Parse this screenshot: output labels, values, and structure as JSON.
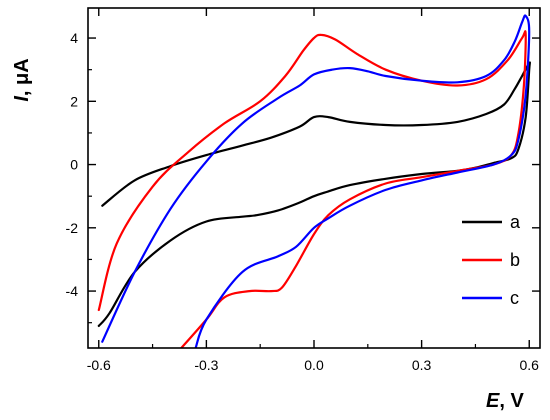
{
  "chart_data": {
    "type": "line",
    "xlabel_symbol": "E",
    "xlabel_unit": ", V",
    "ylabel_symbol": "I",
    "ylabel_unit": ", μA",
    "xlim": [
      -0.63,
      0.63
    ],
    "ylim": [
      -5.8,
      4.95
    ],
    "x_ticks": [
      -0.6,
      -0.3,
      0.0,
      0.3,
      0.6
    ],
    "x_tick_labels": [
      "-0.6",
      "-0.3",
      "0.0",
      "0.3",
      "0.6"
    ],
    "y_ticks": [
      -4,
      -2,
      0,
      2,
      4
    ],
    "y_tick_labels": [
      "-4",
      "-2",
      "0",
      "2",
      "4"
    ],
    "grid": false,
    "legend_position": "right",
    "series": [
      {
        "name": "a",
        "color": "#000000",
        "x": [
          -0.59,
          -0.5,
          -0.4,
          -0.3,
          -0.2,
          -0.12,
          -0.04,
          0.0,
          0.04,
          0.1,
          0.2,
          0.3,
          0.4,
          0.48,
          0.53,
          0.56,
          0.58,
          0.6,
          0.6,
          0.59,
          0.57,
          0.55,
          0.5,
          0.45,
          0.4,
          0.3,
          0.2,
          0.1,
          0.04,
          0.0,
          -0.04,
          -0.1,
          -0.16,
          -0.2,
          -0.3,
          -0.4,
          -0.5,
          -0.57,
          -0.6
        ],
        "y": [
          -1.3,
          -0.5,
          -0.05,
          0.3,
          0.6,
          0.85,
          1.2,
          1.5,
          1.5,
          1.35,
          1.25,
          1.25,
          1.35,
          1.6,
          1.9,
          2.4,
          2.8,
          3.2,
          3.0,
          1.5,
          0.5,
          0.2,
          0.05,
          -0.1,
          -0.2,
          -0.3,
          -0.45,
          -0.65,
          -0.85,
          -1.0,
          -1.2,
          -1.45,
          -1.6,
          -1.65,
          -1.8,
          -2.4,
          -3.4,
          -4.7,
          -5.1
        ]
      },
      {
        "name": "b",
        "color": "#ff0000",
        "x": [
          -0.6,
          -0.55,
          -0.45,
          -0.35,
          -0.25,
          -0.15,
          -0.08,
          -0.03,
          0.0,
          0.02,
          0.06,
          0.12,
          0.2,
          0.3,
          0.4,
          0.48,
          0.54,
          0.58,
          0.59,
          0.585,
          0.57,
          0.55,
          0.5,
          0.4,
          0.3,
          0.2,
          0.1,
          0.04,
          0.0,
          -0.05,
          -0.09,
          -0.12,
          -0.18,
          -0.25,
          -0.3,
          -0.37
        ],
        "y": [
          -4.6,
          -2.5,
          -0.7,
          0.4,
          1.3,
          2.0,
          2.8,
          3.6,
          4.0,
          4.1,
          3.95,
          3.5,
          3.0,
          2.65,
          2.5,
          2.7,
          3.3,
          4.0,
          4.1,
          2.5,
          1.0,
          0.3,
          0.0,
          -0.2,
          -0.4,
          -0.6,
          -1.1,
          -1.6,
          -2.2,
          -3.2,
          -3.9,
          -4.0,
          -4.0,
          -4.2,
          -4.9,
          -5.8
        ]
      },
      {
        "name": "c",
        "color": "#0000ff",
        "x": [
          -0.59,
          -0.5,
          -0.4,
          -0.3,
          -0.2,
          -0.1,
          -0.04,
          0.0,
          0.05,
          0.1,
          0.15,
          0.2,
          0.3,
          0.4,
          0.48,
          0.53,
          0.56,
          0.58,
          0.59,
          0.6,
          0.59,
          0.57,
          0.55,
          0.5,
          0.4,
          0.3,
          0.2,
          0.1,
          0.04,
          0.0,
          -0.05,
          -0.1,
          -0.2,
          -0.3,
          -0.33
        ],
        "y": [
          -5.6,
          -3.4,
          -1.4,
          0.1,
          1.3,
          2.1,
          2.5,
          2.85,
          3.0,
          3.05,
          2.95,
          2.8,
          2.65,
          2.6,
          2.8,
          3.3,
          3.9,
          4.5,
          4.7,
          4.2,
          2.2,
          0.8,
          0.3,
          0.0,
          -0.25,
          -0.5,
          -0.8,
          -1.3,
          -1.7,
          -2.0,
          -2.6,
          -2.9,
          -3.4,
          -4.9,
          -5.8
        ]
      }
    ]
  }
}
